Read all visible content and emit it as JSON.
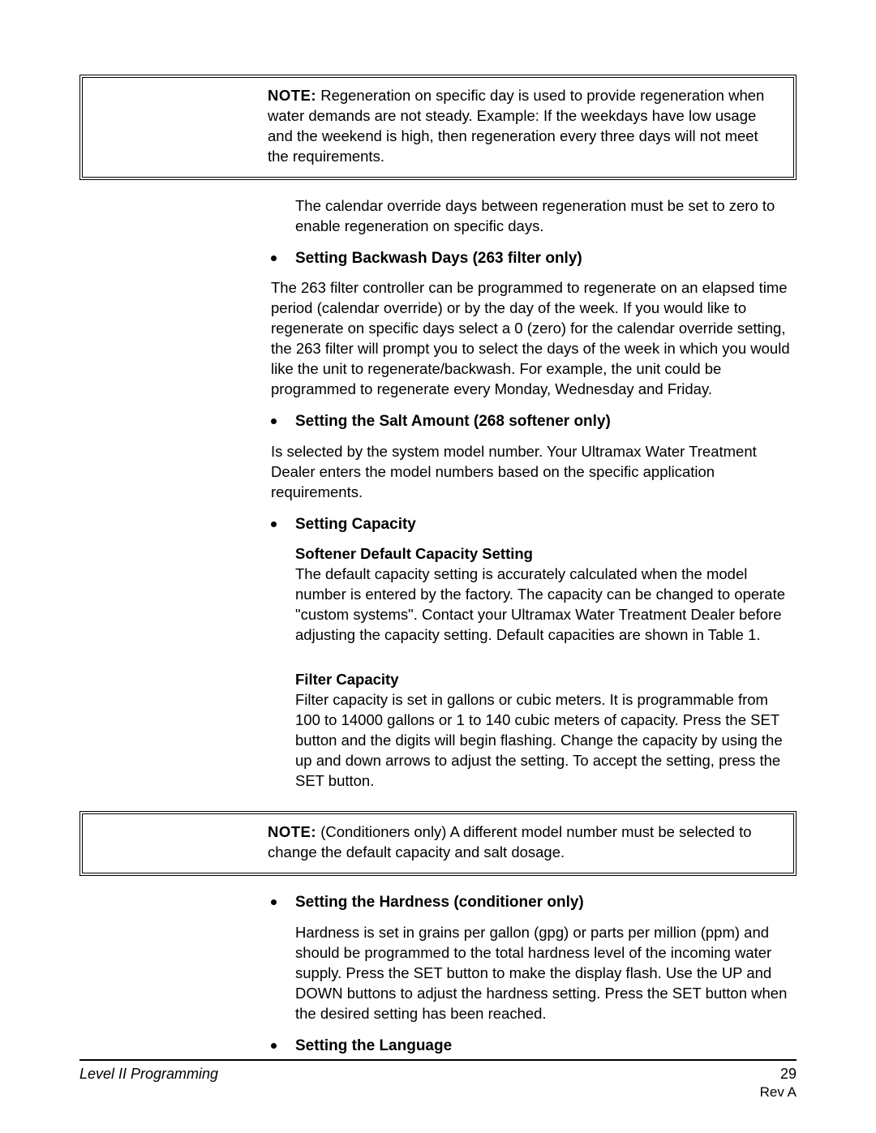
{
  "note1": {
    "label": "NOTE:",
    "text": "Regeneration on specific day is used to provide regeneration when water demands are not steady.  Example:  If the weekdays have low usage and the weekend is high, then regeneration every three days will not meet the requirements."
  },
  "para1": "The calendar override days between regeneration must be set to zero to enable regeneration on specific days.",
  "section1": {
    "heading": "Setting Backwash Days (263 filter only)",
    "body": "The 263 filter controller can be programmed to regenerate on an elapsed time period (calendar override) or by the day of the week. If you would like to regenerate on specific days select a 0 (zero) for the calendar override setting, the 263 filter will prompt you to select the days of the week in which you would like the unit to regenerate/backwash. For example, the unit could be programmed to regenerate every Monday, Wednesday and Friday."
  },
  "section2": {
    "heading": "Setting the Salt Amount (268 softener only)",
    "body": "Is selected by the system model number. Your Ultramax Water Treatment Dealer enters the model numbers based on the specific application requirements."
  },
  "section3": {
    "heading": "Setting Capacity",
    "sub1_heading": "Softener Default Capacity Setting",
    "sub1_body": "The default capacity setting is accurately calculated when the model number is entered by the factory. The capacity can be changed to operate \"custom systems\". Contact your Ultramax Water Treatment Dealer before adjusting the capacity setting. Default capacities are shown in Table 1.",
    "sub2_heading": "Filter Capacity",
    "sub2_body": "Filter capacity is set in gallons or cubic meters. It is programmable from 100 to 14000 gallons or 1 to 140 cubic meters of capacity. Press the SET button and the digits will begin flashing. Change the capacity by using the up and down arrows to adjust the setting. To accept the setting, press the SET button."
  },
  "note2": {
    "label": "NOTE:",
    "text": "(Conditioners only) A different model number must be selected to change the default capacity and salt dosage."
  },
  "section4": {
    "heading": "Setting the Hardness (conditioner only)",
    "body": "Hardness is set in grains per gallon (gpg) or parts per million (ppm) and should be programmed to the total hardness level of the incoming water supply. Press the SET button to make the display flash. Use the UP and DOWN buttons to adjust the hardness setting. Press the SET button when the desired setting has been reached."
  },
  "section5": {
    "heading": "Setting the Language"
  },
  "footer": {
    "left": "Level II Programming",
    "page": "29",
    "rev": "Rev A"
  },
  "colors": {
    "text": "#000000",
    "background": "#ffffff"
  },
  "typography": {
    "body_fontsize": 18.5,
    "heading_weight": 700
  }
}
